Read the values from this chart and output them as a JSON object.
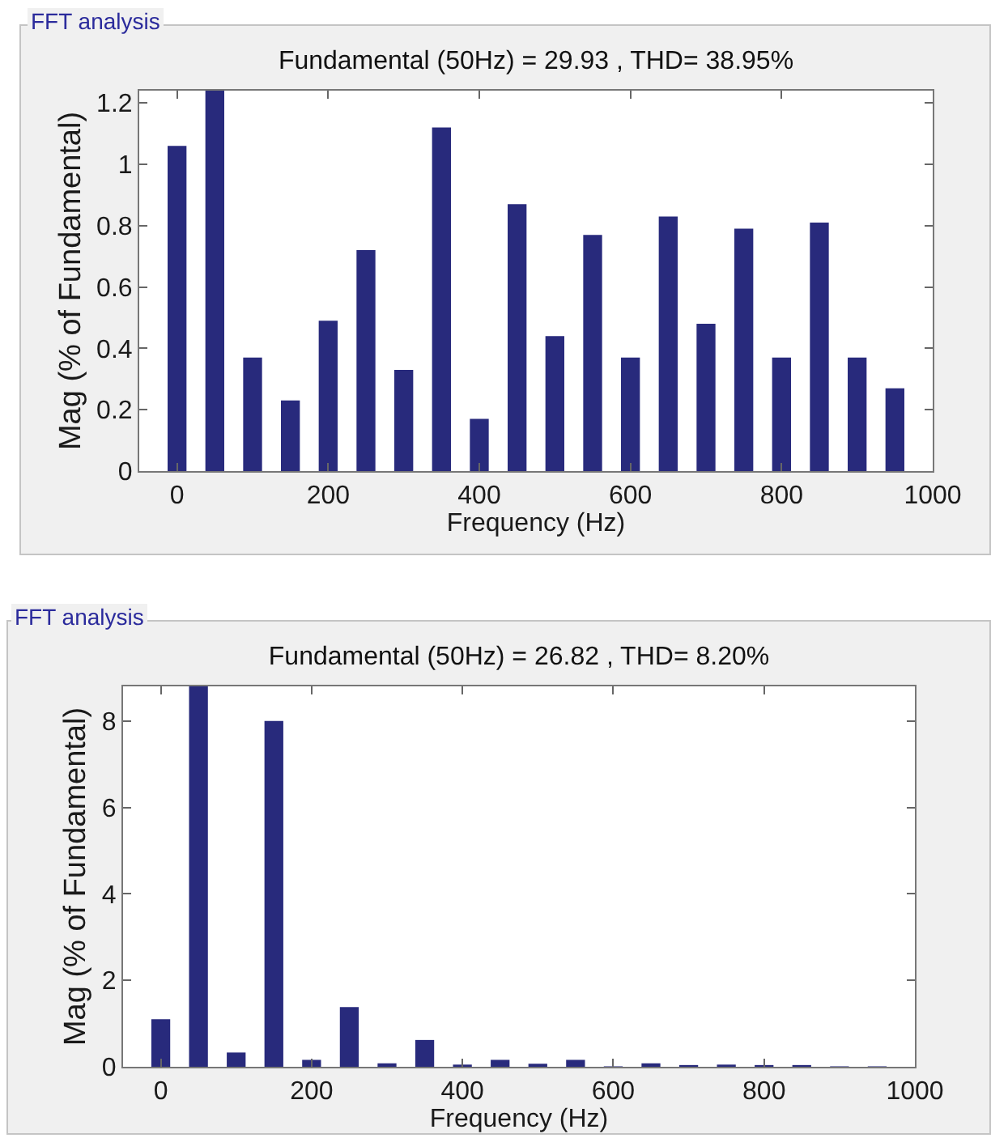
{
  "chart_data": [
    {
      "type": "bar",
      "title": "Fundamental (50Hz) = 29.93 , THD= 38.95%",
      "xlabel": "Frequency (Hz)",
      "ylabel": "Mag (% of Fundamental)",
      "annotations": [
        "FFT analysis"
      ],
      "x": [
        0,
        50,
        100,
        150,
        200,
        250,
        300,
        350,
        400,
        450,
        500,
        550,
        600,
        650,
        700,
        750,
        800,
        850,
        900,
        950
      ],
      "values": [
        1.06,
        1.24,
        0.37,
        0.23,
        0.49,
        0.72,
        0.33,
        1.12,
        0.17,
        0.87,
        0.44,
        0.77,
        0.37,
        0.83,
        0.48,
        0.79,
        0.37,
        0.81,
        0.37,
        0.27
      ],
      "color": "#282a7c",
      "xlim": [
        -50,
        1000
      ],
      "xticks": [
        0,
        200,
        400,
        600,
        800,
        1000
      ],
      "ylim": [
        0,
        1.24
      ],
      "yticks": [
        0,
        0.2,
        0.4,
        0.6,
        0.8,
        1,
        1.2
      ]
    },
    {
      "type": "bar",
      "title": "Fundamental (50Hz) = 26.82 , THD= 8.20%",
      "xlabel": "Frequency (Hz)",
      "ylabel": "Mag (% of Fundamental)",
      "annotations": [
        "FFT analysis"
      ],
      "x": [
        0,
        50,
        100,
        150,
        200,
        250,
        300,
        350,
        400,
        450,
        500,
        550,
        600,
        650,
        700,
        750,
        800,
        850,
        900,
        950
      ],
      "values": [
        1.1,
        8.8,
        0.33,
        8.0,
        0.16,
        1.38,
        0.08,
        0.62,
        0.05,
        0.16,
        0.07,
        0.16,
        0.01,
        0.08,
        0.04,
        0.05,
        0.04,
        0.04,
        0.01,
        0.01
      ],
      "color": "#282a7c",
      "xlim": [
        -50,
        1000
      ],
      "xticks": [
        0,
        200,
        400,
        600,
        800,
        1000
      ],
      "ylim": [
        0,
        8.8
      ],
      "yticks": [
        0,
        2,
        4,
        6,
        8
      ]
    }
  ]
}
